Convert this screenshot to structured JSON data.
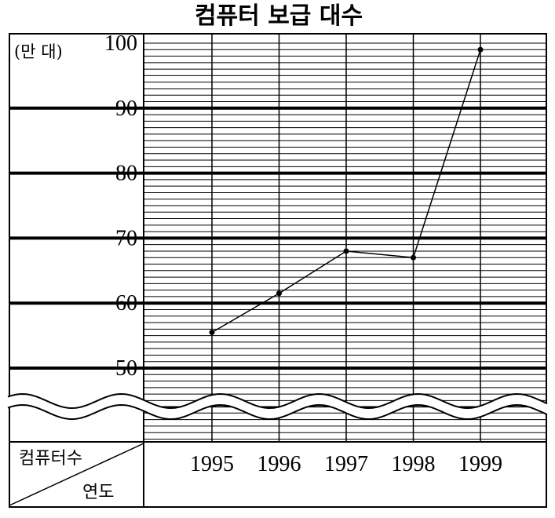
{
  "chart_data": {
    "type": "line",
    "title": "컴퓨터 보급 대수",
    "y_unit": "(만 대)",
    "x": [
      "1995",
      "1996",
      "1997",
      "1998",
      "1999"
    ],
    "y": [
      55.5,
      61.5,
      68,
      67,
      99
    ],
    "y_ticks": [
      "100",
      "90",
      "80",
      "70",
      "60",
      "50"
    ],
    "ylim": [
      45,
      100
    ],
    "axis_break_below": 50,
    "table_header": {
      "top_label": "컴퓨터수",
      "bottom_label": "연도"
    },
    "grid": true,
    "legend": "none"
  }
}
